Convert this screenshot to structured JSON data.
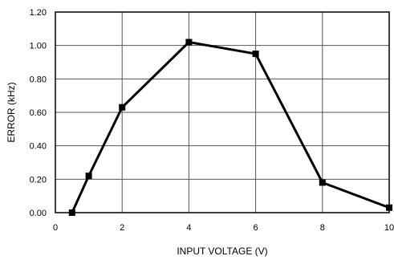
{
  "chart_data": {
    "type": "line",
    "title": "",
    "xlabel": "INPUT VOLTAGE (V)",
    "ylabel": "ERROR (kHz)",
    "xlim": [
      0,
      10
    ],
    "ylim": [
      0,
      1.2
    ],
    "grid": true,
    "x_ticks": [
      0,
      2,
      4,
      6,
      8,
      10
    ],
    "x_tick_labels": [
      "0",
      "2",
      "4",
      "6",
      "8",
      "10"
    ],
    "y_ticks": [
      0,
      0.2,
      0.4,
      0.6,
      0.8,
      1.0,
      1.2
    ],
    "y_tick_labels": [
      "0.00",
      "0.20",
      "0.40",
      "0.60",
      "0.80",
      "1.00",
      "1.20"
    ],
    "series": [
      {
        "x": [
          0.5,
          1,
          2,
          4,
          6,
          8,
          10
        ],
        "y": [
          0.0,
          0.22,
          0.63,
          1.02,
          0.95,
          0.18,
          0.03
        ],
        "color": "#000000",
        "marker": "square"
      }
    ]
  }
}
